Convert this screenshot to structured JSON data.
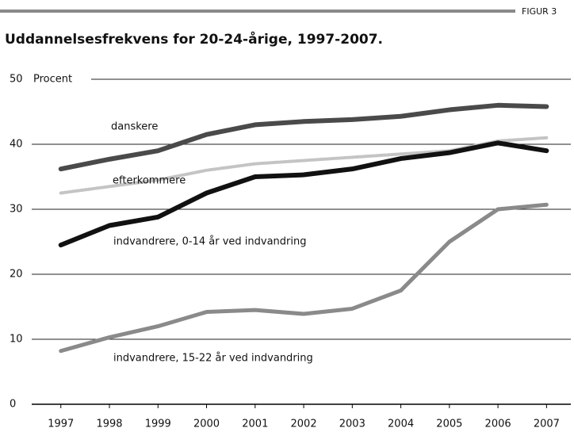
{
  "chart_data": {
    "type": "line",
    "figure_label": "FIGUR 3",
    "title": "Uddannelsesfrekvens for 20-24-årige, 1997-2007.",
    "y_label": "Procent",
    "x": [
      1997,
      1998,
      1999,
      2000,
      2001,
      2002,
      2003,
      2004,
      2005,
      2006,
      2007
    ],
    "series": [
      {
        "name": "danskere",
        "color": "#4a4a4a",
        "values": [
          36.2,
          37.7,
          39.0,
          41.5,
          43.0,
          43.5,
          43.8,
          44.3,
          45.3,
          46.0,
          45.8
        ]
      },
      {
        "name": "efterkommere",
        "color": "#c4c4c4",
        "values": [
          32.5,
          33.5,
          34.5,
          36.0,
          37.0,
          37.5,
          38.0,
          38.5,
          39.0,
          40.5,
          41.0
        ]
      },
      {
        "name": "indvandrere, 0-14 år ved indvandring",
        "color": "#111111",
        "values": [
          24.5,
          27.5,
          28.8,
          32.5,
          35.0,
          35.3,
          36.2,
          37.8,
          38.7,
          40.2,
          39.0
        ]
      },
      {
        "name": "indvandrere, 15-22 år ved indvandring",
        "color": "#8a8a8a",
        "values": [
          8.2,
          10.3,
          12.0,
          14.2,
          14.5,
          13.9,
          14.7,
          17.5,
          25.0,
          30.0,
          30.7
        ]
      }
    ],
    "xlim": [
      1996.4,
      2007.5
    ],
    "xticks": [
      1997,
      1998,
      1999,
      2000,
      2001,
      2002,
      2003,
      2004,
      2005,
      2006,
      2007
    ],
    "ylim": [
      0,
      50
    ],
    "yticks": [
      0,
      10,
      20,
      30,
      40,
      50
    ],
    "grid": true
  }
}
